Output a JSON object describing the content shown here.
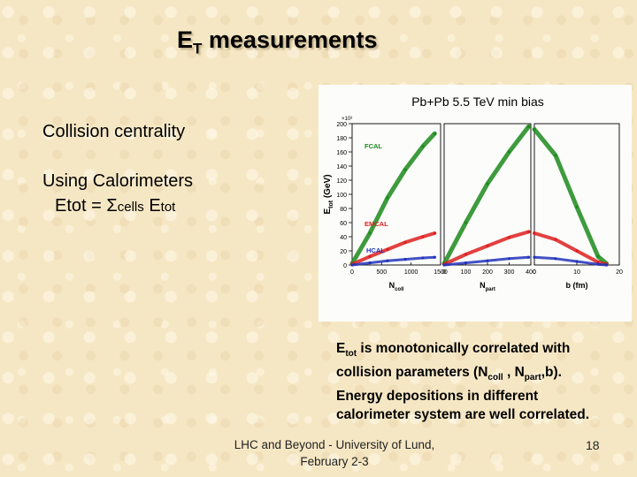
{
  "slide": {
    "title_main": "E",
    "title_sub": "T",
    "title_rest": " measurements",
    "bullet1": "Collision centrality",
    "bullet2": "Using Calorimeters",
    "formula": {
      "lhs": "Etot = ",
      "sigma": "Σ",
      "sub": "cells",
      "rhs": " E",
      "rhs_sub": "tot"
    },
    "description": {
      "e": "E",
      "e_sub": "tot",
      "line1_rest": " is monotonically correlated with",
      "line2_a": "collision parameters (N",
      "line2_sub1": "coll",
      "line2_b": " , N",
      "line2_sub2": "part",
      "line2_c": ",b).",
      "line3": "Energy depositions in different",
      "line4": "calorimeter system are well correlated."
    },
    "footer_line1": "LHC and Beyond - University of Lund,",
    "footer_line2": "February 2-3",
    "page_number": "18"
  },
  "chart_data": {
    "type": "scatter",
    "title": "Pb+Pb 5.5 TeV min bias",
    "ylabel": "E",
    "ylabel_sub": "tot",
    "ylabel_unit": " (GeV)",
    "y_multiplier": "×10³",
    "ylim": [
      0,
      200
    ],
    "yticks": [
      "0",
      "20",
      "40",
      "60",
      "80",
      "100",
      "120",
      "140",
      "160",
      "180",
      "200"
    ],
    "panels": [
      {
        "xlabel": "N",
        "xlabel_sub": "coll",
        "xlim": [
          0,
          1500
        ],
        "xticks": [
          "0",
          "500",
          "1000",
          "1500"
        ]
      },
      {
        "xlabel": "N",
        "xlabel_sub": "part",
        "xlim": [
          0,
          400
        ],
        "xticks": [
          "0",
          "100",
          "200",
          "300",
          "400"
        ]
      },
      {
        "xlabel": "b (fm)",
        "xlabel_sub": "",
        "xlim": [
          0,
          20
        ],
        "xticks": [
          "0",
          "10",
          "20"
        ]
      }
    ],
    "series": [
      {
        "name": "FCAL",
        "color": "#1c8a1c",
        "points": [
          [
            [
              0,
              2
            ],
            [
              300,
              45
            ],
            [
              600,
              95
            ],
            [
              900,
              135
            ],
            [
              1200,
              168
            ],
            [
              1400,
              186
            ]
          ],
          [
            [
              0,
              2
            ],
            [
              100,
              60
            ],
            [
              200,
              115
            ],
            [
              300,
              160
            ],
            [
              390,
              196
            ]
          ],
          [
            [
              0,
              192
            ],
            [
              5,
              155
            ],
            [
              10,
              82
            ],
            [
              15,
              12
            ],
            [
              17,
              2
            ]
          ]
        ]
      },
      {
        "name": "EMCAL",
        "color": "#dd2020",
        "points": [
          [
            [
              0,
              1
            ],
            [
              300,
              12
            ],
            [
              600,
              22
            ],
            [
              900,
              32
            ],
            [
              1200,
              40
            ],
            [
              1400,
              45
            ]
          ],
          [
            [
              0,
              1
            ],
            [
              100,
              15
            ],
            [
              200,
              27
            ],
            [
              300,
              39
            ],
            [
              390,
              47
            ]
          ],
          [
            [
              0,
              45
            ],
            [
              5,
              36
            ],
            [
              10,
              20
            ],
            [
              15,
              4
            ],
            [
              17,
              1
            ]
          ]
        ]
      },
      {
        "name": "HCAL",
        "color": "#2233bb",
        "points": [
          [
            [
              0,
              0
            ],
            [
              300,
              3
            ],
            [
              600,
              6
            ],
            [
              900,
              8
            ],
            [
              1200,
              10
            ],
            [
              1400,
              11
            ]
          ],
          [
            [
              0,
              0
            ],
            [
              100,
              3
            ],
            [
              200,
              6
            ],
            [
              300,
              9
            ],
            [
              390,
              11
            ]
          ],
          [
            [
              0,
              11
            ],
            [
              5,
              9
            ],
            [
              10,
              5
            ],
            [
              15,
              1
            ],
            [
              17,
              0
            ]
          ]
        ]
      }
    ],
    "grid": false,
    "legend": "inline-labels"
  }
}
